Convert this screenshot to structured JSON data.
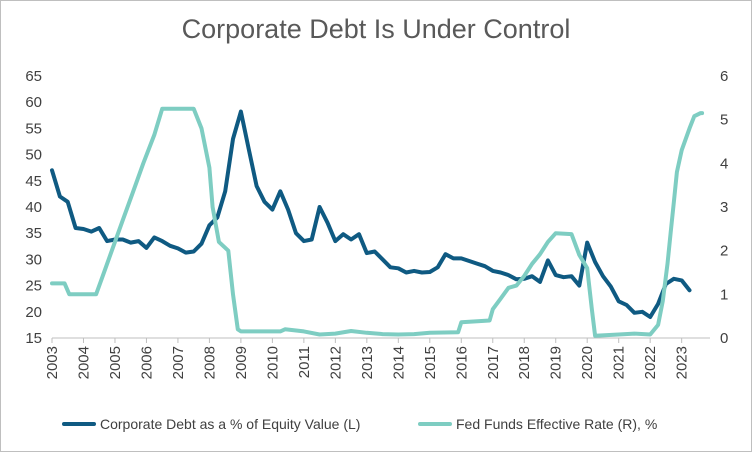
{
  "chart_data": {
    "type": "line",
    "title": "Corporate Debt Is Under Control",
    "xlabel": "",
    "ylabel": "",
    "x_ticks": [
      "2003",
      "2004",
      "2005",
      "2006",
      "2007",
      "2008",
      "2009",
      "2010",
      "2011",
      "2012",
      "2013",
      "2014",
      "2015",
      "2016",
      "2017",
      "2018",
      "2019",
      "2020",
      "2021",
      "2022",
      "2023"
    ],
    "xlim": [
      2003,
      2023.9
    ],
    "y_left": {
      "min": 15,
      "max": 65,
      "ticks": [
        "15",
        "20",
        "25",
        "30",
        "35",
        "40",
        "45",
        "50",
        "55",
        "60",
        "65"
      ]
    },
    "y_right": {
      "min": 0,
      "max": 6,
      "ticks": [
        "0",
        "1",
        "2",
        "3",
        "4",
        "5",
        "6"
      ]
    },
    "grid": false,
    "legend_position": "bottom",
    "series": [
      {
        "name": "Corporate Debt as a % of Equity Value (L)",
        "axis": "left",
        "color": "#0f5a82",
        "points": [
          [
            2003.0,
            47
          ],
          [
            2003.25,
            42
          ],
          [
            2003.5,
            41
          ],
          [
            2003.75,
            36
          ],
          [
            2004.0,
            35.8
          ],
          [
            2004.25,
            35.3
          ],
          [
            2004.5,
            36
          ],
          [
            2004.75,
            33.5
          ],
          [
            2005.0,
            33.8
          ],
          [
            2005.25,
            33.8
          ],
          [
            2005.5,
            33.2
          ],
          [
            2005.75,
            33.5
          ],
          [
            2006.0,
            32.2
          ],
          [
            2006.25,
            34.2
          ],
          [
            2006.5,
            33.5
          ],
          [
            2006.75,
            32.6
          ],
          [
            2007.0,
            32.1
          ],
          [
            2007.25,
            31.3
          ],
          [
            2007.5,
            31.5
          ],
          [
            2007.75,
            33
          ],
          [
            2008.0,
            36.5
          ],
          [
            2008.25,
            38
          ],
          [
            2008.5,
            43
          ],
          [
            2008.75,
            53
          ],
          [
            2009.0,
            58.2
          ],
          [
            2009.25,
            51
          ],
          [
            2009.5,
            44
          ],
          [
            2009.75,
            41
          ],
          [
            2010.0,
            39.5
          ],
          [
            2010.25,
            43
          ],
          [
            2010.5,
            39.5
          ],
          [
            2010.75,
            35
          ],
          [
            2011.0,
            33.5
          ],
          [
            2011.25,
            33.8
          ],
          [
            2011.5,
            40
          ],
          [
            2011.75,
            37
          ],
          [
            2012.0,
            33.5
          ],
          [
            2012.25,
            34.8
          ],
          [
            2012.5,
            33.8
          ],
          [
            2012.75,
            34.8
          ],
          [
            2013.0,
            31.2
          ],
          [
            2013.25,
            31.5
          ],
          [
            2013.5,
            30
          ],
          [
            2013.75,
            28.5
          ],
          [
            2014.0,
            28.3
          ],
          [
            2014.25,
            27.5
          ],
          [
            2014.5,
            27.8
          ],
          [
            2014.75,
            27.5
          ],
          [
            2015.0,
            27.6
          ],
          [
            2015.25,
            28.5
          ],
          [
            2015.5,
            31
          ],
          [
            2015.75,
            30.2
          ],
          [
            2016.0,
            30.2
          ],
          [
            2016.25,
            29.7
          ],
          [
            2016.5,
            29.2
          ],
          [
            2016.75,
            28.7
          ],
          [
            2017.0,
            27.8
          ],
          [
            2017.25,
            27.5
          ],
          [
            2017.5,
            27
          ],
          [
            2017.75,
            26.2
          ],
          [
            2018.0,
            26.3
          ],
          [
            2018.25,
            26.8
          ],
          [
            2018.5,
            25.7
          ],
          [
            2018.75,
            29.8
          ],
          [
            2019.0,
            27
          ],
          [
            2019.25,
            26.6
          ],
          [
            2019.5,
            26.8
          ],
          [
            2019.75,
            25
          ],
          [
            2020.0,
            33.2
          ],
          [
            2020.25,
            29.5
          ],
          [
            2020.5,
            26.8
          ],
          [
            2020.75,
            24.8
          ],
          [
            2021.0,
            22
          ],
          [
            2021.25,
            21.3
          ],
          [
            2021.5,
            19.8
          ],
          [
            2021.75,
            20
          ],
          [
            2022.0,
            19
          ],
          [
            2022.25,
            21.5
          ],
          [
            2022.5,
            25.3
          ],
          [
            2022.75,
            26.3
          ],
          [
            2023.0,
            26
          ],
          [
            2023.25,
            24.1
          ]
        ]
      },
      {
        "name": "Fed Funds Effective Rate (R), %",
        "axis": "right",
        "color": "#7ecdc2",
        "points": [
          [
            2003.0,
            1.25
          ],
          [
            2003.4,
            1.25
          ],
          [
            2003.55,
            1.0
          ],
          [
            2004.4,
            1.0
          ],
          [
            2004.6,
            1.4
          ],
          [
            2004.9,
            2.0
          ],
          [
            2005.25,
            2.7
          ],
          [
            2005.55,
            3.3
          ],
          [
            2005.9,
            4.0
          ],
          [
            2006.25,
            4.65
          ],
          [
            2006.5,
            5.25
          ],
          [
            2007.5,
            5.25
          ],
          [
            2007.75,
            4.8
          ],
          [
            2008.0,
            3.9
          ],
          [
            2008.1,
            3.0
          ],
          [
            2008.3,
            2.2
          ],
          [
            2008.6,
            2.0
          ],
          [
            2008.75,
            1.0
          ],
          [
            2008.9,
            0.2
          ],
          [
            2009.0,
            0.15
          ],
          [
            2010.25,
            0.15
          ],
          [
            2010.4,
            0.2
          ],
          [
            2011.0,
            0.15
          ],
          [
            2011.5,
            0.08
          ],
          [
            2012.0,
            0.1
          ],
          [
            2012.5,
            0.16
          ],
          [
            2013.0,
            0.12
          ],
          [
            2013.5,
            0.09
          ],
          [
            2014.0,
            0.08
          ],
          [
            2014.5,
            0.09
          ],
          [
            2015.0,
            0.12
          ],
          [
            2015.9,
            0.13
          ],
          [
            2016.0,
            0.36
          ],
          [
            2016.9,
            0.4
          ],
          [
            2017.0,
            0.66
          ],
          [
            2017.25,
            0.9
          ],
          [
            2017.5,
            1.15
          ],
          [
            2017.75,
            1.2
          ],
          [
            2018.0,
            1.42
          ],
          [
            2018.25,
            1.7
          ],
          [
            2018.5,
            1.92
          ],
          [
            2018.75,
            2.2
          ],
          [
            2019.0,
            2.4
          ],
          [
            2019.5,
            2.38
          ],
          [
            2019.75,
            1.9
          ],
          [
            2020.0,
            1.6
          ],
          [
            2020.15,
            0.65
          ],
          [
            2020.25,
            0.05
          ],
          [
            2021.0,
            0.08
          ],
          [
            2021.5,
            0.1
          ],
          [
            2022.0,
            0.08
          ],
          [
            2022.25,
            0.3
          ],
          [
            2022.4,
            0.85
          ],
          [
            2022.55,
            1.7
          ],
          [
            2022.65,
            2.4
          ],
          [
            2022.75,
            3.1
          ],
          [
            2022.85,
            3.8
          ],
          [
            2023.0,
            4.3
          ],
          [
            2023.25,
            4.8
          ],
          [
            2023.4,
            5.08
          ],
          [
            2023.6,
            5.15
          ],
          [
            2023.65,
            5.15
          ]
        ]
      }
    ]
  }
}
